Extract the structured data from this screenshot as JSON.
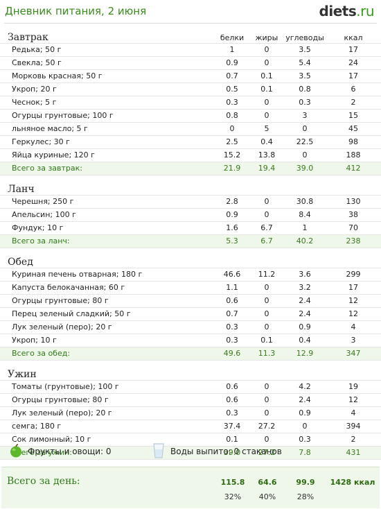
{
  "page": {
    "title": "Дневник питания, 2 июня"
  },
  "logo": {
    "main": "diets",
    "suffix": ".ru"
  },
  "columns": {
    "protein": "белки",
    "fat": "жиры",
    "carbs": "углеводы",
    "kcal": "ккал"
  },
  "meals": [
    {
      "title": "Завтрак",
      "rows": [
        {
          "name": "Редька; 50 г",
          "protein": "1",
          "fat": "0",
          "carbs": "3.5",
          "kcal": "17"
        },
        {
          "name": "Свекла; 50 г",
          "protein": "0.9",
          "fat": "0",
          "carbs": "5.4",
          "kcal": "24"
        },
        {
          "name": "Морковь красная; 50 г",
          "protein": "0.7",
          "fat": "0.1",
          "carbs": "3.5",
          "kcal": "17"
        },
        {
          "name": "Укроп; 20 г",
          "protein": "0.5",
          "fat": "0.1",
          "carbs": "0.8",
          "kcal": "6"
        },
        {
          "name": "Чеснок; 5 г",
          "protein": "0.3",
          "fat": "0",
          "carbs": "0.3",
          "kcal": "2"
        },
        {
          "name": "Огурцы грунтовые; 100 г",
          "protein": "0.8",
          "fat": "0",
          "carbs": "3",
          "kcal": "15"
        },
        {
          "name": "льняное масло; 5 г",
          "protein": "0",
          "fat": "5",
          "carbs": "0",
          "kcal": "45"
        },
        {
          "name": "Геркулес; 30 г",
          "protein": "2.5",
          "fat": "0.4",
          "carbs": "22.5",
          "kcal": "98"
        },
        {
          "name": "Яйца куриные; 120 г",
          "protein": "15.2",
          "fat": "13.8",
          "carbs": "0",
          "kcal": "188"
        }
      ],
      "total": {
        "name": "Всего за завтрак:",
        "protein": "21.9",
        "fat": "19.4",
        "carbs": "39.0",
        "kcal": "412"
      }
    },
    {
      "title": "Ланч",
      "rows": [
        {
          "name": "Черешня; 250 г",
          "protein": "2.8",
          "fat": "0",
          "carbs": "30.8",
          "kcal": "130"
        },
        {
          "name": "Апельсин; 100 г",
          "protein": "0.9",
          "fat": "0",
          "carbs": "8.4",
          "kcal": "38"
        },
        {
          "name": "Фундук; 10 г",
          "protein": "1.6",
          "fat": "6.7",
          "carbs": "1",
          "kcal": "70"
        }
      ],
      "total": {
        "name": "Всего за ланч:",
        "protein": "5.3",
        "fat": "6.7",
        "carbs": "40.2",
        "kcal": "238"
      }
    },
    {
      "title": "Обед",
      "rows": [
        {
          "name": "Куриная печень отварная; 180 г",
          "protein": "46.6",
          "fat": "11.2",
          "carbs": "3.6",
          "kcal": "299"
        },
        {
          "name": "Капуста белокачанная; 60 г",
          "protein": "1.1",
          "fat": "0",
          "carbs": "3.2",
          "kcal": "17"
        },
        {
          "name": "Огурцы грунтовые; 80 г",
          "protein": "0.6",
          "fat": "0",
          "carbs": "2.4",
          "kcal": "12"
        },
        {
          "name": "Перец зеленый сладкий; 50 г",
          "protein": "0.7",
          "fat": "0",
          "carbs": "2.4",
          "kcal": "12"
        },
        {
          "name": "Лук зеленый (перо); 20 г",
          "protein": "0.3",
          "fat": "0",
          "carbs": "0.9",
          "kcal": "4"
        },
        {
          "name": "Укроп; 10 г",
          "protein": "0.3",
          "fat": "0.1",
          "carbs": "0.4",
          "kcal": "3"
        }
      ],
      "total": {
        "name": "Всего за обед:",
        "protein": "49.6",
        "fat": "11.3",
        "carbs": "12.9",
        "kcal": "347"
      }
    },
    {
      "title": "Ужин",
      "rows": [
        {
          "name": "Томаты (грунтовые); 100 г",
          "protein": "0.6",
          "fat": "0",
          "carbs": "4.2",
          "kcal": "19"
        },
        {
          "name": "Огурцы грунтовые; 80 г",
          "protein": "0.6",
          "fat": "0",
          "carbs": "2.4",
          "kcal": "12"
        },
        {
          "name": "Лук зеленый (перо); 20 г",
          "protein": "0.3",
          "fat": "0",
          "carbs": "0.9",
          "kcal": "4"
        },
        {
          "name": "семга; 180 г",
          "protein": "37.4",
          "fat": "27.2",
          "carbs": "0",
          "kcal": "394"
        },
        {
          "name": "Сок лимонный; 10 г",
          "protein": "0.1",
          "fat": "0",
          "carbs": "0.3",
          "kcal": "2"
        }
      ],
      "total": {
        "name": "Всего за ужин:",
        "protein": "39.0",
        "fat": "27.2",
        "carbs": "7.8",
        "kcal": "431"
      }
    }
  ],
  "extras": {
    "fruits_label": "Фрукты и овощи: 0",
    "water_label": "Воды выпито: 0 стаканов",
    "fruit_icon": "apple-icon",
    "water_icon": "glass-icon"
  },
  "day_total": {
    "label": "Всего за день:",
    "protein": "115.8",
    "fat": "64.6",
    "carbs": "99.9",
    "kcal": "1428 ккал",
    "protein_pct": "32%",
    "fat_pct": "40%",
    "carbs_pct": "28%"
  },
  "colors": {
    "accent_green": "#3b8a1e",
    "total_bg": "#eef7e9"
  }
}
